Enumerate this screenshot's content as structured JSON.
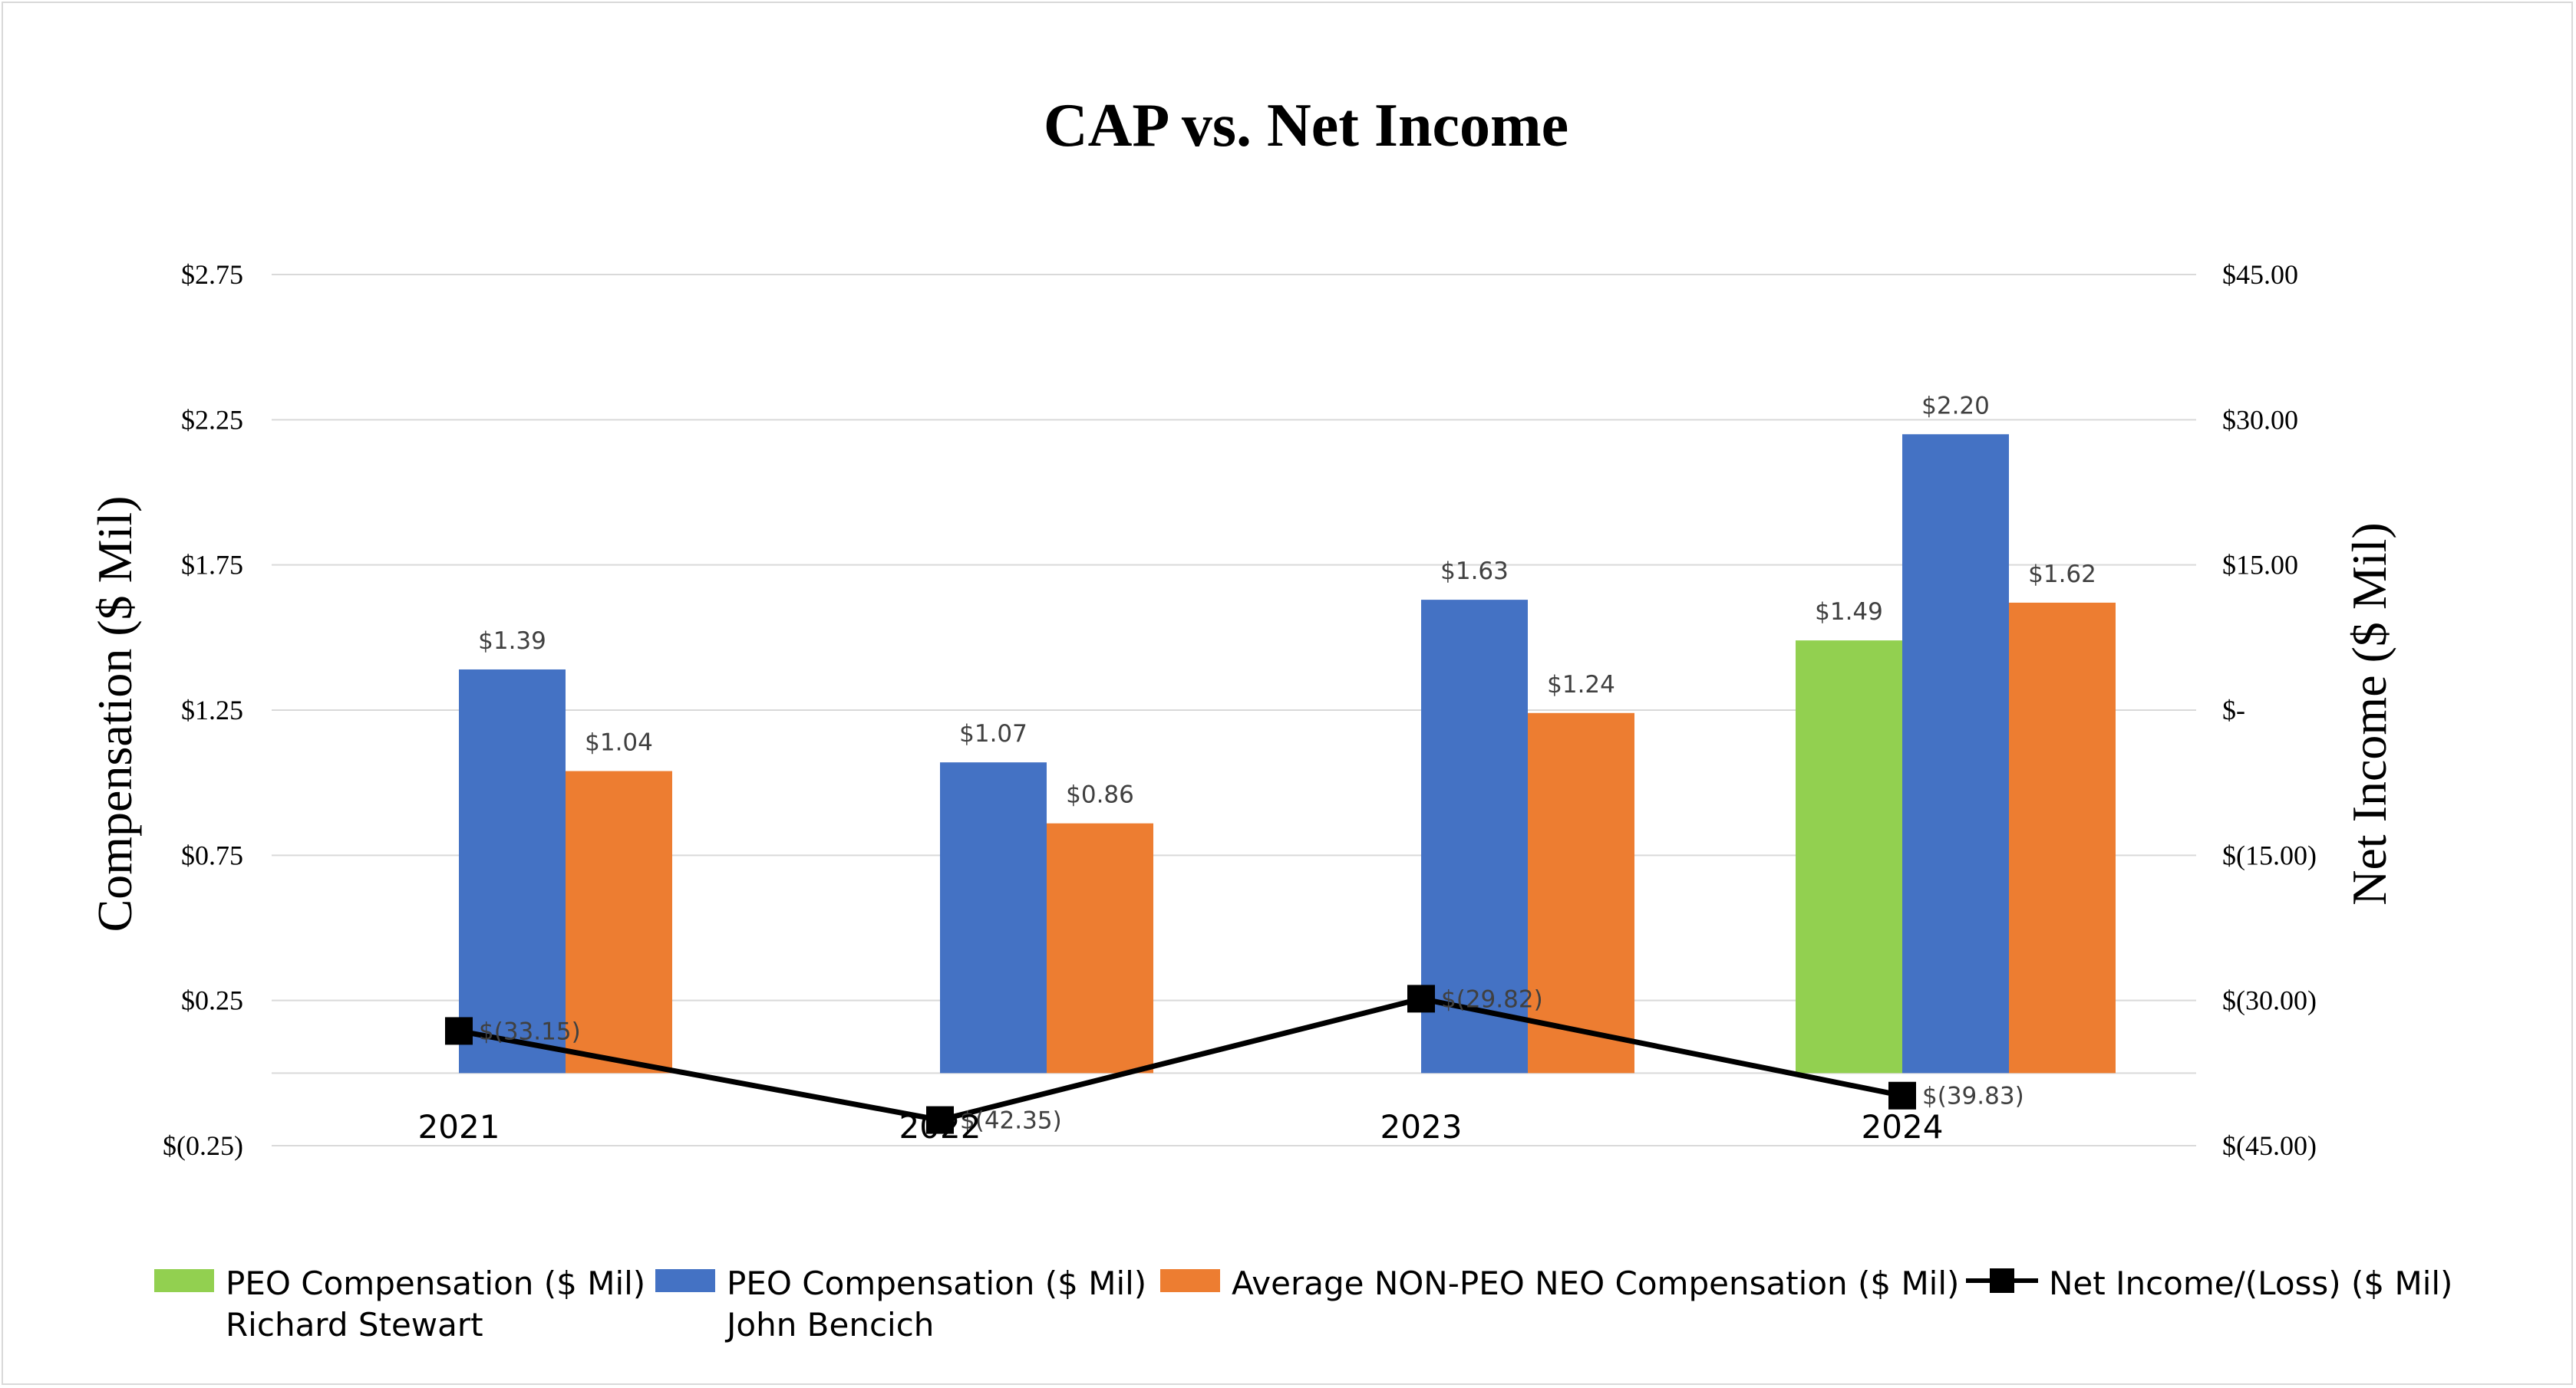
{
  "chart_data": {
    "type": "bar",
    "title": "CAP vs. Net Income",
    "categories": [
      "2021",
      "2022",
      "2023",
      "2024"
    ],
    "ylabel": "Compensation ($ Mil)",
    "y2label": "Net Income ($ Mil)",
    "ylim": [
      -0.25,
      2.75
    ],
    "y2lim": [
      -45,
      45
    ],
    "y_ticks": [
      {
        "value": 2.75,
        "label": "$2.75"
      },
      {
        "value": 2.25,
        "label": "$2.25"
      },
      {
        "value": 1.75,
        "label": "$1.75"
      },
      {
        "value": 1.25,
        "label": "$1.25"
      },
      {
        "value": 0.75,
        "label": "$0.75"
      },
      {
        "value": 0.25,
        "label": "$0.25"
      },
      {
        "value": -0.25,
        "label": "$(0.25)"
      }
    ],
    "y2_ticks": [
      {
        "value": 45,
        "label": "$45.00"
      },
      {
        "value": 30,
        "label": "$30.00"
      },
      {
        "value": 15,
        "label": "$15.00"
      },
      {
        "value": 0,
        "label": "$-"
      },
      {
        "value": -15,
        "label": "$(15.00)"
      },
      {
        "value": -30,
        "label": "$(30.00)"
      },
      {
        "value": -45,
        "label": "$(45.00)"
      }
    ],
    "bar_baseline": 0,
    "series": [
      {
        "name": "PEO Compensation ($ Mil) Richard Stewart",
        "legend_lines": [
          "PEO Compensation ($ Mil)",
          "Richard Stewart"
        ],
        "kind": "bar",
        "color": "#92d050",
        "values": [
          null,
          null,
          null,
          1.49
        ],
        "labels": [
          "",
          "",
          "",
          "$1.49"
        ]
      },
      {
        "name": "PEO Compensation ($ Mil) John Bencich",
        "legend_lines": [
          "PEO Compensation ($ Mil)",
          "John Bencich"
        ],
        "kind": "bar",
        "color": "#4472c4",
        "values": [
          1.39,
          1.07,
          1.63,
          2.2
        ],
        "labels": [
          "$1.39",
          "$1.07",
          "$1.63",
          "$2.20"
        ]
      },
      {
        "name": "Average NON-PEO NEO Compensation ($ Mil)",
        "legend_lines": [
          "Average NON-PEO NEO Compensation ($ Mil)"
        ],
        "kind": "bar",
        "color": "#ed7d31",
        "values": [
          1.04,
          0.86,
          1.24,
          1.62
        ],
        "labels": [
          "$1.04",
          "$0.86",
          "$1.24",
          "$1.62"
        ]
      },
      {
        "name": "Net Income/(Loss) ($ Mil)",
        "legend_lines": [
          "Net Income/(Loss) ($ Mil)"
        ],
        "kind": "line",
        "axis": "secondary",
        "color": "#000000",
        "values": [
          -33.15,
          -42.35,
          -29.82,
          -39.83
        ],
        "labels": [
          "$(33.15)",
          "$(42.35)",
          "$(29.82)",
          "$(39.83)"
        ]
      }
    ]
  }
}
